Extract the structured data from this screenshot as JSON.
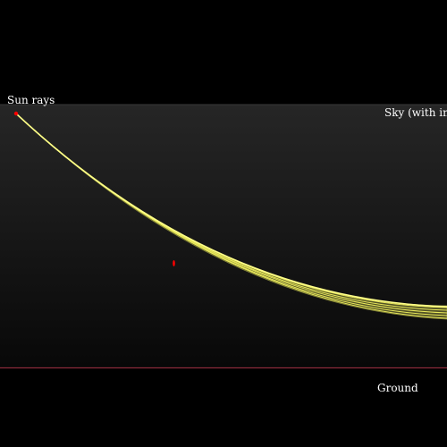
{
  "labels": {
    "sun_rays": "Sun rays",
    "sky": "Sky (with infer",
    "ground": "Ground"
  },
  "colors": {
    "page_background": "#000000",
    "sky_gradient_top": "#262626",
    "sky_gradient_bottom": "#080808",
    "sky_top_edge": "#3a3a3a",
    "ray": "#e8e85a",
    "ray_highlight": "#ffff88",
    "ray_edge": "#8a8a3a",
    "ground_line": "#8a2a3a",
    "marker": "#ff0000"
  }
}
